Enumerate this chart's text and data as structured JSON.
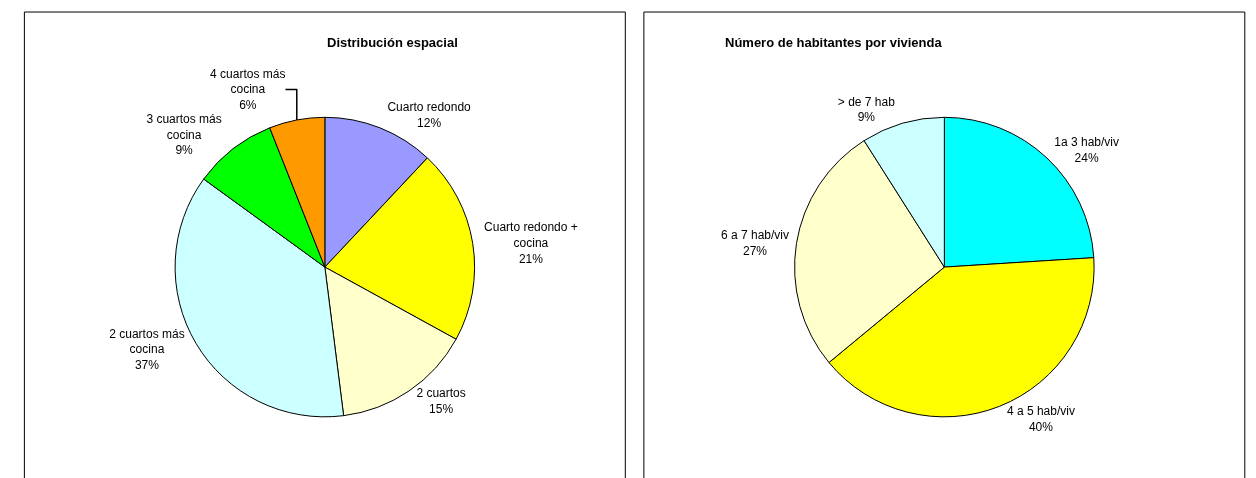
{
  "chart_data": [
    {
      "type": "pie",
      "title": "Distribución espacial",
      "categories": [
        "Cuarto redondo",
        "Cuarto redondo + cocina",
        "2 cuartos",
        "2 cuartos más cocina",
        "3 cuartos más cocina",
        "4 cuartos más cocina"
      ],
      "values": [
        12,
        21,
        15,
        37,
        9,
        6
      ],
      "value_labels": [
        "12%",
        "21%",
        "15%",
        "37%",
        "9%",
        "6%"
      ],
      "colors": [
        "#9999ff",
        "#ffff00",
        "#ffffcc",
        "#ccffff",
        "#00ff00",
        "#ff9900"
      ]
    },
    {
      "type": "pie",
      "title": "Número de habitantes por vivienda",
      "categories": [
        "1a 3 hab/viv",
        "4 a 5 hab/viv",
        "6 a 7 hab/viv",
        "> de 7 hab"
      ],
      "values": [
        24,
        40,
        27,
        9
      ],
      "value_labels": [
        "24%",
        "40%",
        "27%",
        "9%"
      ],
      "colors": [
        "#00ffff",
        "#ffff00",
        "#ffffcc",
        "#ccffff"
      ]
    }
  ]
}
